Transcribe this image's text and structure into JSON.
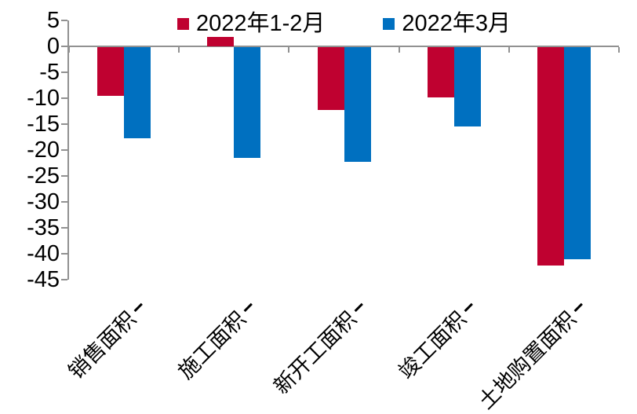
{
  "chart_data": {
    "type": "bar",
    "title": "",
    "xlabel": "",
    "ylabel": "",
    "categories": [
      "销售面积",
      "施工面积",
      "新开工面积",
      "竣工面积",
      "土地购置面积"
    ],
    "series": [
      {
        "name": "2022年1-2月",
        "color": "#BF0130",
        "values": [
          -9.6,
          1.8,
          -12.2,
          -9.8,
          -42.3
        ]
      },
      {
        "name": "2022年3月",
        "color": "#0070C0",
        "values": [
          -17.7,
          -21.5,
          -22.3,
          -15.5,
          -41.0
        ]
      }
    ],
    "ylim": [
      -45,
      5
    ],
    "ytick_step": 5,
    "ytick_labels": [
      "5",
      "0",
      "-5",
      "-10",
      "-15",
      "-20",
      "-25",
      "-30",
      "-35",
      "-40",
      "-45"
    ],
    "ytick_values": [
      5,
      0,
      -5,
      -10,
      -15,
      -20,
      -25,
      -30,
      -35,
      -40,
      -45
    ],
    "grid": false,
    "legend_position": "top-center",
    "axis_color": "#919191",
    "text_color": "#000000"
  }
}
